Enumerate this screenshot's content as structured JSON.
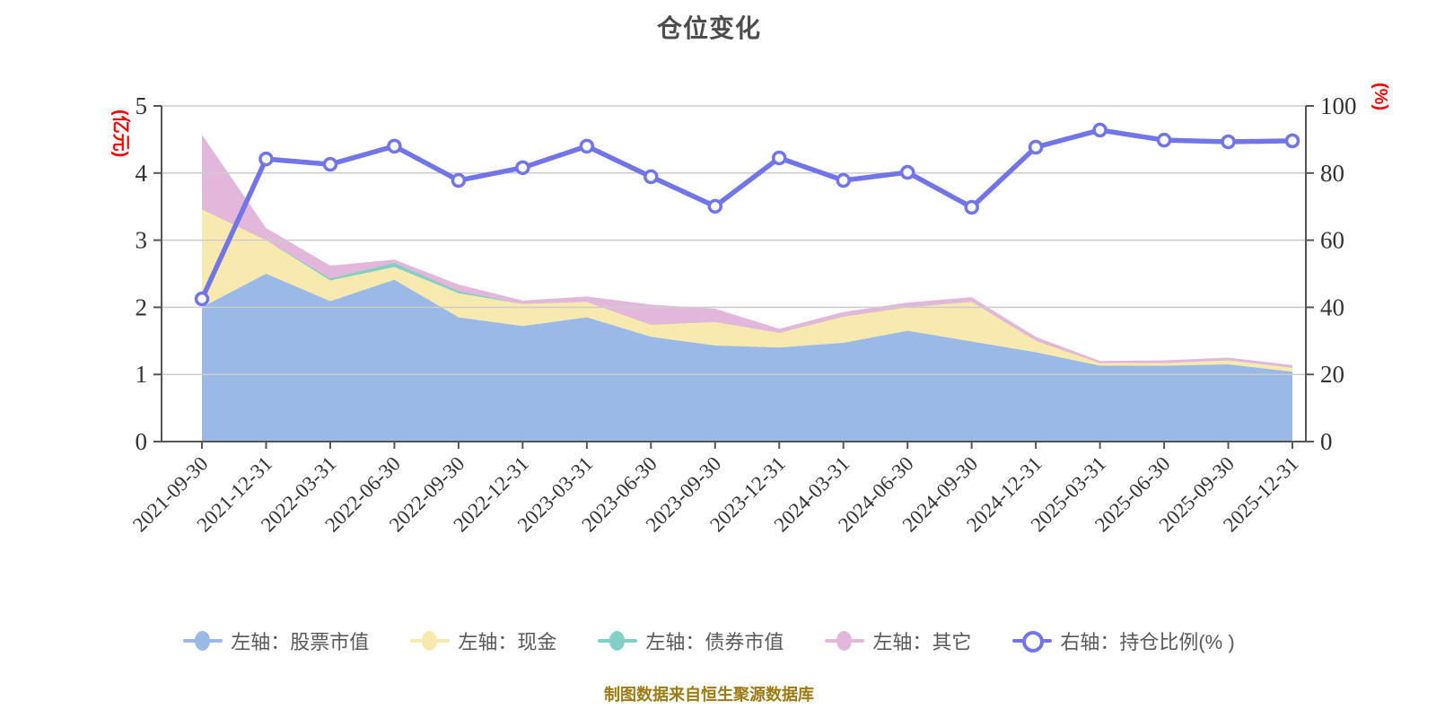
{
  "chart_data": {
    "type": "area",
    "subtype": "stacked-area-with-line-dual-axis",
    "title": "仓位变化",
    "note": "制图数据来自恒生聚源数据库",
    "background": "#ffffff",
    "grid_color": "#cccccc",
    "axis_color": "#555555",
    "tick_label_color": "#333333",
    "axis_unit_color": "#ff0000",
    "left_axis": {
      "label": "(亿元)",
      "min": 0,
      "max": 5,
      "ticks": [
        "0",
        "1",
        "2",
        "3",
        "4",
        "5"
      ]
    },
    "right_axis": {
      "label": "(%)",
      "min": 0,
      "max": 100,
      "ticks": [
        "0",
        "20",
        "40",
        "60",
        "80",
        "100"
      ]
    },
    "legend_position": "bottom",
    "grid": true,
    "categories": [
      "2021-09-30",
      "2021-12-31",
      "2022-03-31",
      "2022-06-30",
      "2022-09-30",
      "2022-12-31",
      "2023-03-31",
      "2023-06-30",
      "2023-09-30",
      "2023-12-31",
      "2024-03-31",
      "2024-06-30",
      "2024-09-30",
      "2024-12-31",
      "2025-03-31",
      "2025-06-30",
      "2025-09-30",
      "2025-12-31"
    ],
    "series": [
      {
        "key": "stock",
        "name": "左轴：股票市值",
        "axis": "left",
        "type": "area",
        "color": "#9ab9e6",
        "values": [
          2.0,
          2.5,
          2.09,
          2.41,
          1.85,
          1.72,
          1.85,
          1.56,
          1.43,
          1.4,
          1.47,
          1.65,
          1.49,
          1.33,
          1.13,
          1.13,
          1.15,
          1.04
        ]
      },
      {
        "key": "cash",
        "name": "左轴：现金",
        "axis": "left",
        "type": "area",
        "color": "#f8e9ae",
        "values": [
          1.46,
          0.5,
          0.31,
          0.19,
          0.36,
          0.33,
          0.23,
          0.18,
          0.35,
          0.22,
          0.39,
          0.35,
          0.59,
          0.17,
          0.04,
          0.04,
          0.06,
          0.06
        ]
      },
      {
        "key": "bond",
        "name": "左轴：债券市值",
        "axis": "left",
        "type": "area",
        "color": "#82cfc8",
        "values": [
          0,
          0,
          0.03,
          0.06,
          0.03,
          0,
          0,
          0,
          0,
          0,
          0,
          0,
          0,
          0,
          0,
          0,
          0,
          0
        ]
      },
      {
        "key": "other",
        "name": "左轴：其它",
        "axis": "left",
        "type": "area",
        "color": "#e3b7dc",
        "values": [
          1.11,
          0.18,
          0.19,
          0.05,
          0.1,
          0.05,
          0.08,
          0.3,
          0.2,
          0.06,
          0.07,
          0.07,
          0.07,
          0.06,
          0.03,
          0.04,
          0.04,
          0.04
        ]
      },
      {
        "key": "ratio",
        "name": "右轴：持仓比例(% )",
        "axis": "right",
        "type": "line",
        "color": "#7175e8",
        "marker_fill": "#ffffff",
        "values": [
          42.5,
          84.2,
          82.6,
          88.0,
          77.8,
          81.6,
          88.0,
          78.9,
          70.1,
          84.5,
          77.8,
          80.2,
          69.8,
          87.7,
          92.8,
          89.8,
          89.3,
          89.6
        ]
      }
    ]
  }
}
